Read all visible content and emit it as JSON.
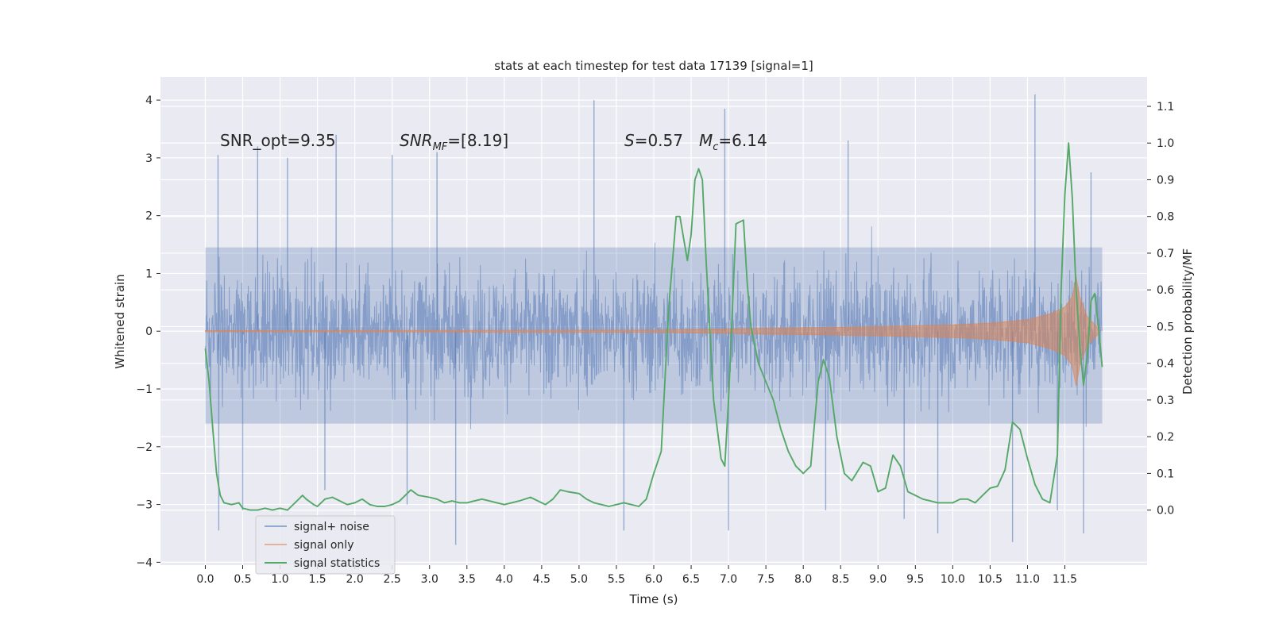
{
  "chart_data": {
    "type": "line",
    "title": "stats at each timestep for test data 17139 [signal=1]",
    "xlabel": "Time (s)",
    "ylabel_left": "Whitened strain",
    "ylabel_right": "Detection probability/MF",
    "xlim": [
      -0.6,
      12.6
    ],
    "ylim_left": [
      -4.05,
      4.4
    ],
    "ylim_right": [
      -0.15,
      1.18
    ],
    "x_ticks": [
      0.0,
      0.5,
      1.0,
      1.5,
      2.0,
      2.5,
      3.0,
      3.5,
      4.0,
      4.5,
      5.0,
      5.5,
      6.0,
      6.5,
      7.0,
      7.5,
      8.0,
      8.5,
      9.0,
      9.5,
      10.0,
      10.5,
      11.0,
      11.5
    ],
    "x_tick_labels": [
      "0.0",
      "0.5",
      "1.0",
      "1.5",
      "2.0",
      "2.5",
      "3.0",
      "3.5",
      "4.0",
      "4.5",
      "5.0",
      "5.5",
      "6.0",
      "6.5",
      "7.0",
      "7.5",
      "8.0",
      "8.5",
      "9.0",
      "9.5",
      "10.0",
      "10.5",
      "11.0",
      "11.5"
    ],
    "y_left_ticks": [
      4,
      3,
      2,
      1,
      0,
      -1,
      -2,
      -3,
      -4
    ],
    "y_left_tick_labels": [
      "4",
      "3",
      "2",
      "1",
      "0",
      "−1",
      "−2",
      "−3",
      "−4"
    ],
    "y_right_ticks": [
      1.1,
      1.0,
      0.9,
      0.8,
      0.7,
      0.6,
      0.5,
      0.4,
      0.3,
      0.2,
      0.1,
      0.0
    ],
    "y_right_tick_labels": [
      "1.1",
      "1.0",
      "0.9",
      "0.8",
      "0.7",
      "0.6",
      "0.5",
      "0.4",
      "0.3",
      "0.2",
      "0.1",
      "0.0"
    ],
    "grid": true,
    "legend_position": "lower-left",
    "legend": [
      "signal+ noise",
      "signal only",
      "signal statistics"
    ],
    "colors": {
      "background": "#eaeaf2",
      "grid": "#ffffff",
      "noise": "#4c72b0",
      "signal": "#dd8452",
      "stats": "#55a868"
    },
    "annotations": {
      "snr_opt": "SNR_opt=9.35",
      "snr_mf_sym": "SNR",
      "snr_mf_sub": "MF",
      "snr_mf_val": "=[8.19]",
      "s_sym": "S",
      "s_val": "=0.57",
      "mc_sym": "M",
      "mc_sub": "c",
      "mc_val": "=6.14"
    },
    "series": [
      {
        "name": "signal+ noise",
        "axis": "left",
        "x_range": [
          0.0,
          12.0
        ],
        "typical_band": [
          -1.6,
          1.45
        ],
        "peak_values": [
          [
            0.17,
            3.05
          ],
          [
            0.7,
            3.2
          ],
          [
            1.1,
            3.0
          ],
          [
            1.75,
            3.4
          ],
          [
            2.5,
            3.05
          ],
          [
            3.1,
            3.1
          ],
          [
            5.2,
            4.0
          ],
          [
            6.95,
            3.85
          ],
          [
            8.6,
            3.3
          ],
          [
            11.1,
            4.1
          ],
          [
            11.85,
            2.75
          ],
          [
            0.18,
            -3.45
          ],
          [
            0.5,
            -3.1
          ],
          [
            1.6,
            -2.75
          ],
          [
            2.7,
            -3.0
          ],
          [
            3.35,
            -3.7
          ],
          [
            5.6,
            -3.45
          ],
          [
            7.0,
            -3.45
          ],
          [
            8.3,
            -3.1
          ],
          [
            9.35,
            -3.25
          ],
          [
            9.8,
            -3.5
          ],
          [
            10.8,
            -3.65
          ],
          [
            11.4,
            -3.1
          ],
          [
            11.75,
            -3.5
          ]
        ]
      },
      {
        "name": "signal only",
        "axis": "left",
        "x_range": [
          0.0,
          11.95
        ],
        "envelope": [
          [
            0.0,
            0.01
          ],
          [
            6.0,
            0.02
          ],
          [
            7.0,
            0.04
          ],
          [
            8.0,
            0.06
          ],
          [
            9.0,
            0.08
          ],
          [
            10.0,
            0.11
          ],
          [
            10.5,
            0.14
          ],
          [
            11.0,
            0.2
          ],
          [
            11.3,
            0.3
          ],
          [
            11.5,
            0.42
          ],
          [
            11.6,
            0.6
          ],
          [
            11.65,
            0.95
          ],
          [
            11.7,
            0.6
          ],
          [
            11.8,
            0.25
          ],
          [
            11.95,
            0.05
          ]
        ]
      },
      {
        "name": "signal statistics",
        "axis": "right",
        "points": [
          [
            0.0,
            0.44
          ],
          [
            0.05,
            0.35
          ],
          [
            0.1,
            0.22
          ],
          [
            0.15,
            0.1
          ],
          [
            0.2,
            0.04
          ],
          [
            0.25,
            0.02
          ],
          [
            0.35,
            0.015
          ],
          [
            0.45,
            0.02
          ],
          [
            0.5,
            0.005
          ],
          [
            0.6,
            0.0
          ],
          [
            0.7,
            0.0
          ],
          [
            0.8,
            0.005
          ],
          [
            0.9,
            0.0
          ],
          [
            1.0,
            0.005
          ],
          [
            1.1,
            0.0
          ],
          [
            1.15,
            0.01
          ],
          [
            1.25,
            0.03
          ],
          [
            1.3,
            0.04
          ],
          [
            1.35,
            0.03
          ],
          [
            1.45,
            0.015
          ],
          [
            1.5,
            0.01
          ],
          [
            1.6,
            0.03
          ],
          [
            1.7,
            0.035
          ],
          [
            1.8,
            0.025
          ],
          [
            1.9,
            0.015
          ],
          [
            2.0,
            0.02
          ],
          [
            2.1,
            0.03
          ],
          [
            2.2,
            0.015
          ],
          [
            2.3,
            0.01
          ],
          [
            2.4,
            0.01
          ],
          [
            2.5,
            0.015
          ],
          [
            2.6,
            0.025
          ],
          [
            2.7,
            0.045
          ],
          [
            2.75,
            0.055
          ],
          [
            2.85,
            0.04
          ],
          [
            3.0,
            0.035
          ],
          [
            3.1,
            0.03
          ],
          [
            3.2,
            0.02
          ],
          [
            3.3,
            0.025
          ],
          [
            3.4,
            0.02
          ],
          [
            3.5,
            0.02
          ],
          [
            3.6,
            0.025
          ],
          [
            3.7,
            0.03
          ],
          [
            3.8,
            0.025
          ],
          [
            3.9,
            0.02
          ],
          [
            4.0,
            0.015
          ],
          [
            4.1,
            0.02
          ],
          [
            4.2,
            0.025
          ],
          [
            4.35,
            0.035
          ],
          [
            4.45,
            0.025
          ],
          [
            4.55,
            0.015
          ],
          [
            4.65,
            0.03
          ],
          [
            4.75,
            0.055
          ],
          [
            4.85,
            0.05
          ],
          [
            5.0,
            0.045
          ],
          [
            5.1,
            0.03
          ],
          [
            5.2,
            0.02
          ],
          [
            5.3,
            0.015
          ],
          [
            5.4,
            0.01
          ],
          [
            5.5,
            0.015
          ],
          [
            5.6,
            0.02
          ],
          [
            5.7,
            0.015
          ],
          [
            5.8,
            0.01
          ],
          [
            5.9,
            0.03
          ],
          [
            6.0,
            0.1
          ],
          [
            6.1,
            0.16
          ],
          [
            6.2,
            0.55
          ],
          [
            6.3,
            0.8
          ],
          [
            6.35,
            0.8
          ],
          [
            6.4,
            0.74
          ],
          [
            6.45,
            0.68
          ],
          [
            6.5,
            0.75
          ],
          [
            6.55,
            0.9
          ],
          [
            6.6,
            0.93
          ],
          [
            6.65,
            0.9
          ],
          [
            6.7,
            0.68
          ],
          [
            6.8,
            0.3
          ],
          [
            6.9,
            0.14
          ],
          [
            6.95,
            0.12
          ],
          [
            7.0,
            0.3
          ],
          [
            7.1,
            0.78
          ],
          [
            7.2,
            0.79
          ],
          [
            7.25,
            0.62
          ],
          [
            7.3,
            0.5
          ],
          [
            7.4,
            0.4
          ],
          [
            7.5,
            0.35
          ],
          [
            7.6,
            0.3
          ],
          [
            7.7,
            0.22
          ],
          [
            7.8,
            0.16
          ],
          [
            7.9,
            0.12
          ],
          [
            8.0,
            0.1
          ],
          [
            8.1,
            0.12
          ],
          [
            8.2,
            0.35
          ],
          [
            8.27,
            0.41
          ],
          [
            8.35,
            0.36
          ],
          [
            8.45,
            0.2
          ],
          [
            8.55,
            0.1
          ],
          [
            8.65,
            0.08
          ],
          [
            8.8,
            0.13
          ],
          [
            8.9,
            0.12
          ],
          [
            9.0,
            0.05
          ],
          [
            9.1,
            0.06
          ],
          [
            9.2,
            0.15
          ],
          [
            9.3,
            0.12
          ],
          [
            9.4,
            0.05
          ],
          [
            9.5,
            0.04
          ],
          [
            9.6,
            0.03
          ],
          [
            9.7,
            0.025
          ],
          [
            9.8,
            0.02
          ],
          [
            9.9,
            0.02
          ],
          [
            10.0,
            0.02
          ],
          [
            10.1,
            0.03
          ],
          [
            10.2,
            0.03
          ],
          [
            10.3,
            0.02
          ],
          [
            10.4,
            0.04
          ],
          [
            10.5,
            0.06
          ],
          [
            10.6,
            0.065
          ],
          [
            10.7,
            0.11
          ],
          [
            10.8,
            0.24
          ],
          [
            10.9,
            0.22
          ],
          [
            11.0,
            0.14
          ],
          [
            11.1,
            0.07
          ],
          [
            11.2,
            0.03
          ],
          [
            11.3,
            0.02
          ],
          [
            11.4,
            0.15
          ],
          [
            11.45,
            0.6
          ],
          [
            11.5,
            0.86
          ],
          [
            11.55,
            1.0
          ],
          [
            11.6,
            0.85
          ],
          [
            11.65,
            0.6
          ],
          [
            11.7,
            0.45
          ],
          [
            11.75,
            0.34
          ],
          [
            11.8,
            0.42
          ],
          [
            11.85,
            0.57
          ],
          [
            11.9,
            0.59
          ],
          [
            11.95,
            0.5
          ],
          [
            12.0,
            0.39
          ]
        ]
      }
    ]
  }
}
